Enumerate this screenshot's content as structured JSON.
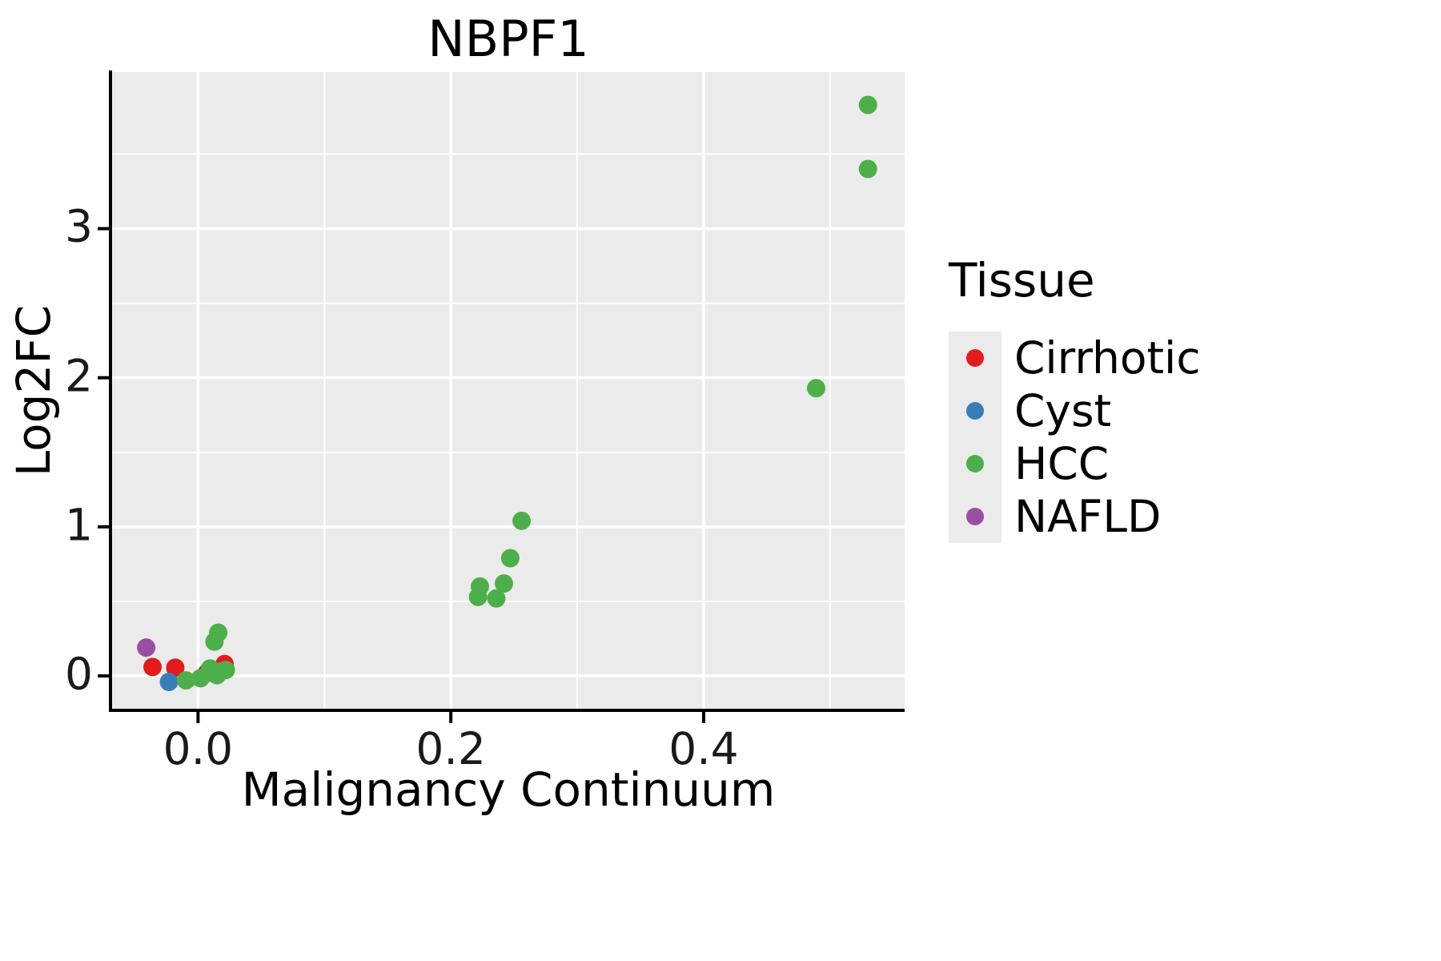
{
  "chart_data": {
    "type": "scatter",
    "title": "NBPF1",
    "xlabel": "Malignancy Continuum",
    "ylabel": "Log2FC",
    "legend_title": "Tissue",
    "legend_position": "right",
    "grid": true,
    "panel_bg": "#EBEBEB",
    "grid_color": "#FFFFFF",
    "axis_color": "#000000",
    "xlim": [
      -0.068,
      0.559
    ],
    "ylim": [
      -0.22,
      4.05
    ],
    "x_ticks": {
      "values": [
        0.0,
        0.2,
        0.4
      ],
      "labels": [
        "0.0",
        "0.2",
        "0.4"
      ]
    },
    "y_ticks": {
      "values": [
        0,
        1,
        2,
        3
      ],
      "labels": [
        "0",
        "1",
        "2",
        "3"
      ]
    },
    "x_minor": [
      0.1,
      0.3,
      0.5
    ],
    "y_minor": [
      0.5,
      1.5,
      2.5,
      3.5
    ],
    "series": [
      {
        "name": "Cirrhotic",
        "color": "#E41A1C",
        "points": [
          [
            -0.036,
            0.06
          ],
          [
            -0.018,
            0.055
          ],
          [
            0.021,
            0.08
          ],
          [
            0.007,
            0.02
          ]
        ]
      },
      {
        "name": "Cyst",
        "color": "#377EB8",
        "points": [
          [
            -0.023,
            -0.04
          ]
        ]
      },
      {
        "name": "HCC",
        "color": "#4DAF4A",
        "points": [
          [
            0.53,
            3.83
          ],
          [
            0.53,
            3.4
          ],
          [
            0.489,
            1.93
          ],
          [
            0.256,
            1.04
          ],
          [
            0.247,
            0.79
          ],
          [
            0.242,
            0.62
          ],
          [
            0.223,
            0.6
          ],
          [
            0.2215,
            0.53
          ],
          [
            0.236,
            0.52
          ],
          [
            0.016,
            0.29
          ],
          [
            0.013,
            0.23
          ],
          [
            0.0095,
            0.05
          ],
          [
            0.018,
            0.03
          ],
          [
            -0.0095,
            -0.03
          ],
          [
            0.002,
            -0.015
          ],
          [
            0.022,
            0.04
          ],
          [
            0.015,
            0.005
          ]
        ]
      },
      {
        "name": "NAFLD",
        "color": "#984EA3",
        "points": [
          [
            -0.041,
            0.19
          ]
        ]
      }
    ]
  }
}
